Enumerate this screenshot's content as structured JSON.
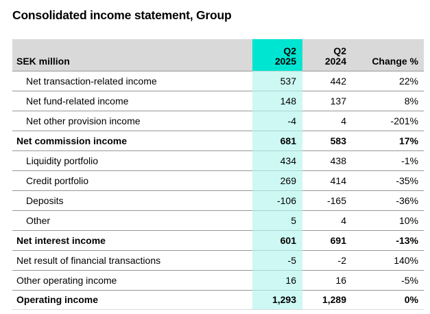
{
  "title": "Consolidated income statement, Group",
  "table": {
    "columns": {
      "label": "SEK million",
      "q2_2025": [
        "Q2",
        "2025"
      ],
      "q2_2024": [
        "Q2",
        "2024"
      ],
      "change": "Change %"
    },
    "rows": [
      {
        "label": "Net transaction-related income",
        "q2_2025": "537",
        "q2_2024": "442",
        "change": "22%",
        "style": "indent"
      },
      {
        "label": "Net fund-related income",
        "q2_2025": "148",
        "q2_2024": "137",
        "change": "8%",
        "style": "indent"
      },
      {
        "label": "Net other provision income",
        "q2_2025": "-4",
        "q2_2024": "4",
        "change": "-201%",
        "style": "indent"
      },
      {
        "label": "Net commission income",
        "q2_2025": "681",
        "q2_2024": "583",
        "change": "17%",
        "style": "subtotal"
      },
      {
        "label": "Liquidity portfolio",
        "q2_2025": "434",
        "q2_2024": "438",
        "change": "-1%",
        "style": "indent"
      },
      {
        "label": "Credit portfolio",
        "q2_2025": "269",
        "q2_2024": "414",
        "change": "-35%",
        "style": "indent"
      },
      {
        "label": "Deposits",
        "q2_2025": "-106",
        "q2_2024": "-165",
        "change": "-36%",
        "style": "indent"
      },
      {
        "label": "Other",
        "q2_2025": "5",
        "q2_2024": "4",
        "change": "10%",
        "style": "indent"
      },
      {
        "label": "Net interest income",
        "q2_2025": "601",
        "q2_2024": "691",
        "change": "-13%",
        "style": "subtotal"
      },
      {
        "label": "Net result of financial transactions",
        "q2_2025": "-5",
        "q2_2024": "-2",
        "change": "140%",
        "style": "plain"
      },
      {
        "label": "Other operating income",
        "q2_2025": "16",
        "q2_2024": "16",
        "change": "-5%",
        "style": "plain"
      },
      {
        "label": "Operating income",
        "q2_2025": "1,293",
        "q2_2024": "1,289",
        "change": "0%",
        "style": "total"
      }
    ]
  },
  "colors": {
    "highlight_header": "#00e5d1",
    "highlight_column": "#cdf8f3",
    "header_bg": "#d9d9d9",
    "row_line": "#969696",
    "row_line_on_cyan": "#a9d4cf",
    "table_bottom_line": "#d9d9d9",
    "text": "#000000"
  }
}
